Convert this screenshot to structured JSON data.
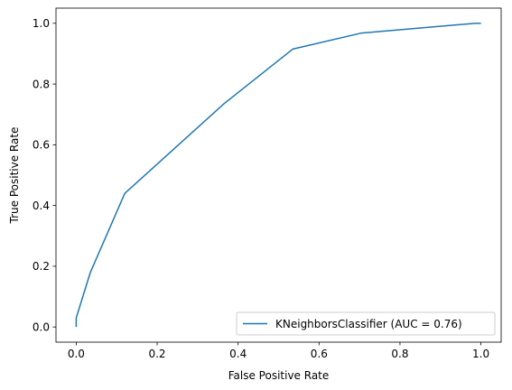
{
  "chart_data": {
    "type": "line",
    "title": "",
    "xlabel": "False Positive Rate",
    "ylabel": "True Positive Rate",
    "xlim": [
      -0.05,
      1.05
    ],
    "ylim": [
      -0.05,
      1.05
    ],
    "xticks": [
      "0.0",
      "0.2",
      "0.4",
      "0.6",
      "0.8",
      "1.0"
    ],
    "yticks": [
      "0.0",
      "0.2",
      "0.4",
      "0.6",
      "0.8",
      "1.0"
    ],
    "grid": false,
    "legend_position": "lower-right",
    "series": [
      {
        "name": "KNeighborsClassifier (AUC = 0.76)",
        "color": "#1f77b4",
        "x": [
          0.0,
          0.0,
          0.035,
          0.12,
          0.365,
          0.535,
          0.705,
          0.985,
          1.0
        ],
        "y": [
          0.0,
          0.03,
          0.18,
          0.44,
          0.735,
          0.915,
          0.968,
          1.0,
          1.0
        ]
      }
    ]
  }
}
